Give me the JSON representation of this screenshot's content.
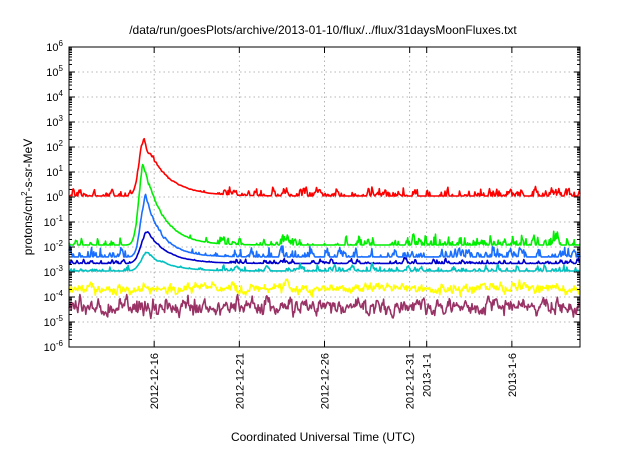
{
  "chart_data": {
    "type": "line",
    "title": "/data/run/goesPlots/archive/2013-01-10/flux/../flux/31daysMoonFluxes.txt",
    "xlabel": "Coordinated Universal Time (UTC)",
    "ylabel": {
      "prefix": "protons/cm",
      "sup": "2",
      "suffix": "-s-sr-MeV"
    },
    "y_scale": "log",
    "ylim": [
      1e-06,
      1000000.0
    ],
    "y_ticks": [
      {
        "value": 1e-06,
        "base": "10",
        "exp": "-6"
      },
      {
        "value": 1e-05,
        "base": "10",
        "exp": "-5"
      },
      {
        "value": 0.0001,
        "base": "10",
        "exp": "-4"
      },
      {
        "value": 0.001,
        "base": "10",
        "exp": "-3"
      },
      {
        "value": 0.01,
        "base": "10",
        "exp": "-2"
      },
      {
        "value": 0.1,
        "base": "10",
        "exp": "-1"
      },
      {
        "value": 1.0,
        "base": "10",
        "exp": "0"
      },
      {
        "value": 10.0,
        "base": "10",
        "exp": "1"
      },
      {
        "value": 100.0,
        "base": "10",
        "exp": "2"
      },
      {
        "value": 1000.0,
        "base": "10",
        "exp": "3"
      },
      {
        "value": 10000.0,
        "base": "10",
        "exp": "4"
      },
      {
        "value": 100000.0,
        "base": "10",
        "exp": "5"
      },
      {
        "value": 1000000.0,
        "base": "10",
        "exp": "6"
      }
    ],
    "xlim": [
      "2012-12-11",
      "2013-01-10"
    ],
    "x_ticks": [
      {
        "date": "2012-12-16",
        "label": "2012-12-16"
      },
      {
        "date": "2012-12-21",
        "label": "2012-12-21"
      },
      {
        "date": "2012-12-26",
        "label": "2012-12-26"
      },
      {
        "date": "2012-12-31",
        "label": "2012-12-31"
      },
      {
        "date": "2013-01-01",
        "label": "2013-1-1"
      },
      {
        "date": "2013-01-06",
        "label": "2013-1-6"
      }
    ],
    "grid": true,
    "series": [
      {
        "color": "#ff0000",
        "x_start": "2012-12-11",
        "x_end": "2013-01-10",
        "baseline": 1.1,
        "noise": 0.45,
        "event": {
          "peak_date": "2012-12-15.4",
          "peak": 200,
          "rise_days": 0.4,
          "decay_days": 1.3
        }
      },
      {
        "color": "#00ee00",
        "x_start": "2012-12-11",
        "x_end": "2013-01-10",
        "baseline": 0.012,
        "noise": 0.6,
        "event": {
          "peak_date": "2012-12-15.4",
          "peak": 20,
          "rise_days": 0.4,
          "decay_days": 1.1
        }
      },
      {
        "color": "#1a6fff",
        "x_start": "2012-12-11",
        "x_end": "2013-01-10",
        "baseline": 0.004,
        "noise": 0.55,
        "event": {
          "peak_date": "2012-12-15.5",
          "peak": 1,
          "rise_days": 0.4,
          "decay_days": 1.0
        }
      },
      {
        "color": "#0000cc",
        "x_start": "2012-12-11",
        "x_end": "2013-01-10",
        "baseline": 0.0022,
        "noise": 0.25,
        "event": {
          "peak_date": "2012-12-15.6",
          "peak": 0.04,
          "rise_days": 0.5,
          "decay_days": 1.2
        }
      },
      {
        "color": "#00c0c0",
        "x_start": "2012-12-11",
        "x_end": "2013-01-10",
        "baseline": 0.0011,
        "noise": 0.3,
        "event": {
          "peak_date": "2012-12-15.6",
          "peak": 0.006,
          "rise_days": 0.5,
          "decay_days": 1.2
        }
      },
      {
        "color": "#ffff00",
        "x_start": "2012-12-11",
        "x_end": "2013-01-10",
        "baseline": 0.00022,
        "noise": 0.35,
        "event": null
      },
      {
        "color": "#993366",
        "x_start": "2012-12-11",
        "x_end": "2013-01-10",
        "baseline": 4e-05,
        "noise": 0.55,
        "event": null
      }
    ]
  }
}
